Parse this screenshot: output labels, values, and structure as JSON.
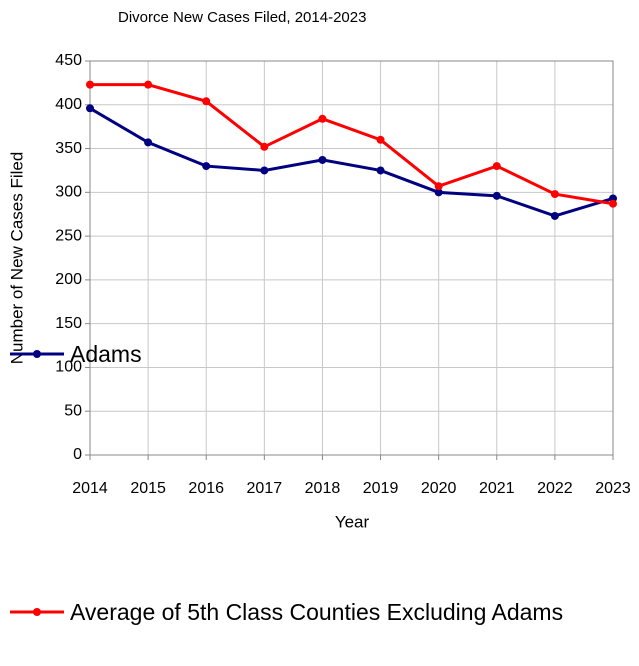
{
  "chart_data": {
    "type": "line",
    "title": "Divorce New Cases Filed, 2014-2023",
    "x_label": "Year",
    "y_label": "Number of New Cases Filed",
    "categories": [
      "2014",
      "2015",
      "2016",
      "2017",
      "2018",
      "2019",
      "2020",
      "2021",
      "2022",
      "2023"
    ],
    "series": [
      {
        "name": "Adams",
        "color": "#000080",
        "values": [
          396,
          357,
          330,
          325,
          337,
          325,
          300,
          296,
          273,
          293
        ]
      },
      {
        "name": "Average of 5th Class Counties Excluding Adams",
        "color": "#ff0000",
        "values": [
          423,
          423,
          404,
          352,
          384,
          360,
          307,
          330,
          298,
          287
        ]
      }
    ],
    "ylim": [
      0,
      450
    ],
    "yticks": [
      0,
      50,
      100,
      150,
      200,
      250,
      300,
      350,
      400,
      450
    ],
    "grid": true
  }
}
